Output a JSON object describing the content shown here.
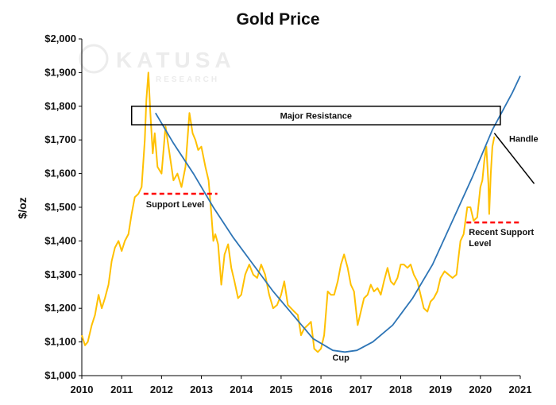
{
  "chart_data": {
    "type": "line",
    "title": "Gold Price",
    "ylabel": "$/oz",
    "xlabel": "",
    "xlim": [
      2010,
      2021
    ],
    "ylim": [
      1000,
      2000
    ],
    "x_ticks": [
      2010,
      2011,
      2012,
      2013,
      2014,
      2015,
      2016,
      2017,
      2018,
      2019,
      2020,
      2021
    ],
    "x_tick_labels": [
      "2010",
      "2011",
      "2012",
      "2013",
      "2014",
      "2015",
      "2016",
      "2017",
      "2018",
      "2019",
      "2020",
      "2021"
    ],
    "y_ticks": [
      1000,
      1100,
      1200,
      1300,
      1400,
      1500,
      1600,
      1700,
      1800,
      1900,
      2000
    ],
    "y_tick_labels": [
      "$1,000",
      "$1,100",
      "$1,200",
      "$1,300",
      "$1,400",
      "$1,500",
      "$1,600",
      "$1,700",
      "$1,800",
      "$1,900",
      "$2,000"
    ],
    "grid": false,
    "watermark": {
      "brand": "KATUSA",
      "sub": "RESEARCH"
    },
    "colors": {
      "price": "#ffc000",
      "cup": "#2e75b6",
      "support": "#ff0000",
      "box": "#000000",
      "handle": "#000000"
    },
    "series": [
      {
        "name": "Gold price",
        "x": [
          2010.0,
          2010.08,
          2010.15,
          2010.25,
          2010.33,
          2010.42,
          2010.5,
          2010.58,
          2010.67,
          2010.75,
          2010.83,
          2010.92,
          2011.0,
          2011.08,
          2011.17,
          2011.25,
          2011.33,
          2011.42,
          2011.5,
          2011.58,
          2011.62,
          2011.67,
          2011.72,
          2011.78,
          2011.83,
          2011.9,
          2012.0,
          2012.1,
          2012.2,
          2012.3,
          2012.4,
          2012.5,
          2012.6,
          2012.7,
          2012.78,
          2012.85,
          2012.92,
          2013.0,
          2013.1,
          2013.18,
          2013.25,
          2013.3,
          2013.35,
          2013.42,
          2013.5,
          2013.58,
          2013.67,
          2013.75,
          2013.83,
          2013.92,
          2014.0,
          2014.1,
          2014.2,
          2014.3,
          2014.4,
          2014.5,
          2014.6,
          2014.7,
          2014.8,
          2014.9,
          2015.0,
          2015.08,
          2015.17,
          2015.25,
          2015.33,
          2015.42,
          2015.5,
          2015.58,
          2015.67,
          2015.75,
          2015.83,
          2015.92,
          2016.0,
          2016.08,
          2016.17,
          2016.25,
          2016.33,
          2016.42,
          2016.5,
          2016.58,
          2016.67,
          2016.75,
          2016.83,
          2016.92,
          2017.0,
          2017.08,
          2017.17,
          2017.25,
          2017.33,
          2017.42,
          2017.5,
          2017.58,
          2017.67,
          2017.75,
          2017.83,
          2017.92,
          2018.0,
          2018.08,
          2018.17,
          2018.25,
          2018.33,
          2018.42,
          2018.5,
          2018.58,
          2018.67,
          2018.75,
          2018.83,
          2018.92,
          2019.0,
          2019.1,
          2019.2,
          2019.3,
          2019.4,
          2019.5,
          2019.58,
          2019.67,
          2019.75,
          2019.83,
          2019.92,
          2020.0,
          2020.05,
          2020.1,
          2020.15,
          2020.2,
          2020.22,
          2020.26,
          2020.3,
          2020.35
        ],
        "values": [
          1120,
          1090,
          1100,
          1150,
          1180,
          1240,
          1200,
          1230,
          1270,
          1340,
          1380,
          1400,
          1370,
          1400,
          1420,
          1480,
          1530,
          1540,
          1560,
          1700,
          1820,
          1900,
          1780,
          1660,
          1720,
          1620,
          1600,
          1740,
          1660,
          1580,
          1600,
          1560,
          1620,
          1780,
          1720,
          1700,
          1670,
          1680,
          1620,
          1580,
          1480,
          1400,
          1420,
          1390,
          1270,
          1360,
          1390,
          1320,
          1280,
          1230,
          1240,
          1300,
          1330,
          1300,
          1290,
          1330,
          1300,
          1240,
          1200,
          1210,
          1240,
          1280,
          1210,
          1200,
          1190,
          1180,
          1120,
          1140,
          1150,
          1160,
          1080,
          1070,
          1080,
          1120,
          1250,
          1240,
          1240,
          1280,
          1330,
          1360,
          1320,
          1270,
          1250,
          1150,
          1190,
          1230,
          1240,
          1270,
          1250,
          1260,
          1240,
          1280,
          1320,
          1280,
          1270,
          1290,
          1330,
          1330,
          1320,
          1330,
          1300,
          1280,
          1240,
          1200,
          1190,
          1220,
          1230,
          1250,
          1290,
          1310,
          1300,
          1290,
          1300,
          1400,
          1420,
          1500,
          1500,
          1460,
          1470,
          1560,
          1580,
          1640,
          1680,
          1570,
          1480,
          1600,
          1680,
          1710
        ]
      },
      {
        "name": "Cup trend",
        "x": [
          2011.85,
          2012.3,
          2012.8,
          2013.3,
          2013.8,
          2014.3,
          2014.8,
          2015.3,
          2015.8,
          2016.3,
          2016.6,
          2016.9,
          2017.3,
          2017.8,
          2018.3,
          2018.8,
          2019.3,
          2019.8,
          2020.3,
          2020.8,
          2021.0
        ],
        "values": [
          1780,
          1690,
          1600,
          1500,
          1410,
          1330,
          1250,
          1180,
          1110,
          1075,
          1070,
          1075,
          1100,
          1150,
          1230,
          1330,
          1460,
          1590,
          1730,
          1840,
          1890
        ]
      }
    ],
    "resistance_band": {
      "x": [
        2011.25,
        2020.5
      ],
      "y": [
        1745,
        1800
      ],
      "label": "Major Resistance"
    },
    "support_levels": [
      {
        "label": "Support Level",
        "y": 1540,
        "x": [
          2011.55,
          2013.4
        ]
      },
      {
        "label": "Recent Support Level",
        "y": 1455,
        "x": [
          2019.65,
          2021.0
        ]
      }
    ],
    "handle": {
      "label": "Handle",
      "x": [
        2020.35,
        2021.35
      ],
      "y": [
        1720,
        1570
      ]
    },
    "annotations": [
      {
        "label": "Cup",
        "x": 2016.5,
        "y": 1045
      }
    ]
  }
}
